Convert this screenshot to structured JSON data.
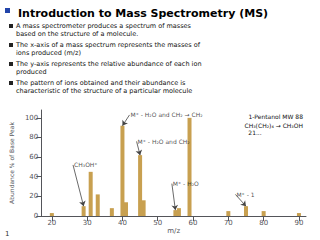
{
  "chart_data": {
    "type": "bar",
    "title": "Introduction to Mass Spectrometry (MS)",
    "bullets": [
      "A mass spectrometer produces a spectrum of masses\nbased on the structure of a molecule.",
      "The x-axis of a mass spectrum represents the masses of\nions produced (m/z)",
      "The y-axis represents the relative abundance of each ion\nproduced",
      "The pattern of ions obtained and their abundance is\ncharacteristic of the structure of a particular molecule"
    ],
    "footnote": "1",
    "xlabel": "m/z",
    "ylabel": "Abundance % of Base Peak",
    "x": [
      20,
      29,
      31,
      33,
      37,
      40,
      41,
      45,
      46,
      55,
      56,
      59,
      70,
      75,
      80,
      90
    ],
    "values": [
      3,
      10,
      45,
      22,
      8,
      92,
      14,
      62,
      16,
      6,
      8,
      100,
      5,
      10,
      5,
      3
    ],
    "color": "#c8a050",
    "xlim": [
      17,
      92
    ],
    "xticks": [
      20,
      30,
      40,
      50,
      60,
      70,
      80,
      90
    ],
    "ylim": [
      0,
      108
    ],
    "yticks": [
      0,
      20,
      40,
      60,
      80,
      100
    ],
    "grid": false,
    "annotations": [
      {
        "text": "M⁺ - H₂O and CH₂ → CH₂",
        "xy": [
          40,
          92
        ],
        "xytext": [
          42,
          103
        ]
      },
      {
        "text": "CH₃OH⁺",
        "xy": [
          29,
          10
        ],
        "xytext": [
          26,
          52
        ]
      },
      {
        "text": "M⁺ - H₂O and CH₂",
        "xy": [
          45,
          62
        ],
        "xytext": [
          44,
          76
        ]
      },
      {
        "text": "M⁺ - H₂O",
        "xy": [
          55,
          6
        ],
        "xytext": [
          54,
          33
        ]
      },
      {
        "text": "M⁺ - 1",
        "xy": [
          75,
          10
        ],
        "xytext": [
          72,
          22
        ]
      },
      {
        "text": "1-Pentanol MW 88"
      },
      {
        "text": "CH₃(CH₂)₄ → CH₃OH\n  21..."
      }
    ]
  }
}
